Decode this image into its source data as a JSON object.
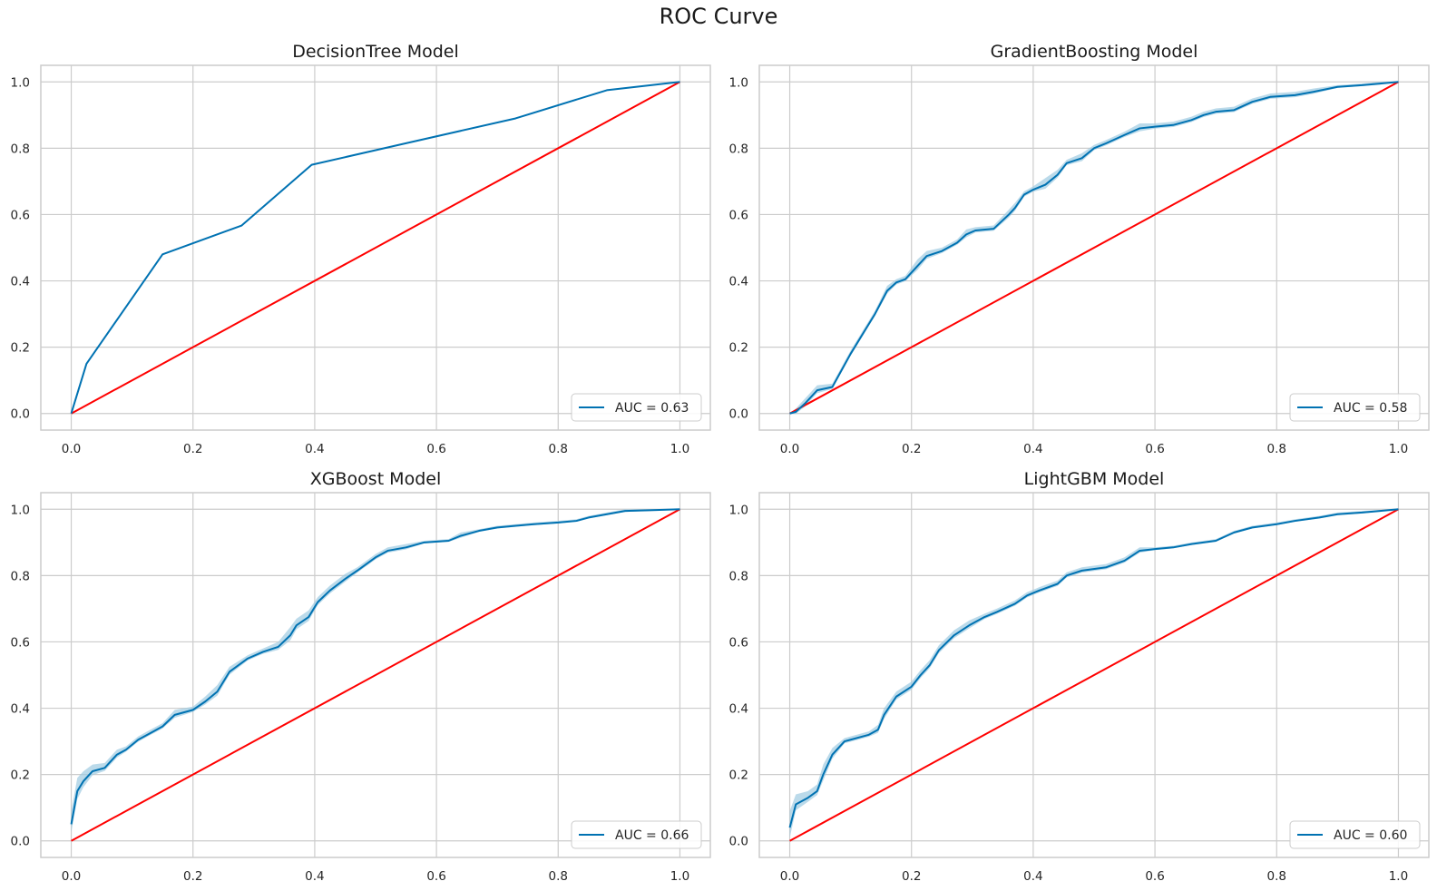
{
  "figure": {
    "suptitle": "ROC Curve"
  },
  "colors": {
    "curve": "#0072b2",
    "band": "#9ecae1",
    "diagonal": "#ff0000",
    "grid": "#cccccc",
    "spine": "#cccccc"
  },
  "chart_data": [
    {
      "type": "line",
      "title": "DecisionTree Model",
      "xlabel": "",
      "ylabel": "",
      "xlim": [
        -0.05,
        1.05
      ],
      "ylim": [
        -0.05,
        1.05
      ],
      "xticks": [
        "0.0",
        "0.2",
        "0.4",
        "0.6",
        "0.8",
        "1.0"
      ],
      "yticks": [
        "0.0",
        "0.2",
        "0.4",
        "0.6",
        "0.8",
        "1.0"
      ],
      "grid": true,
      "legend": {
        "placement": "lower-right",
        "label": "AUC = 0.63"
      },
      "series": [
        {
          "x": [
            0,
            0.025,
            0.15,
            0.28,
            0.395,
            0.55,
            0.73,
            0.88,
            1.0
          ],
          "y": [
            0,
            0.15,
            0.48,
            0.567,
            0.75,
            0.815,
            0.89,
            0.975,
            1.0
          ]
        }
      ],
      "band": [],
      "diagonal": {
        "x": [
          0,
          1
        ],
        "y": [
          0,
          1
        ]
      }
    },
    {
      "type": "line",
      "title": "GradientBoosting Model",
      "xlabel": "",
      "ylabel": "",
      "xlim": [
        -0.05,
        1.05
      ],
      "ylim": [
        -0.05,
        1.05
      ],
      "xticks": [
        "0.0",
        "0.2",
        "0.4",
        "0.6",
        "0.8",
        "1.0"
      ],
      "yticks": [
        "0.0",
        "0.2",
        "0.4",
        "0.6",
        "0.8",
        "1.0"
      ],
      "grid": true,
      "legend": {
        "placement": "lower-right",
        "label": "AUC = 0.58"
      },
      "series": [
        {
          "x": [
            0,
            0.01,
            0.025,
            0.045,
            0.07,
            0.1,
            0.125,
            0.14,
            0.16,
            0.175,
            0.19,
            0.21,
            0.225,
            0.25,
            0.275,
            0.29,
            0.305,
            0.335,
            0.36,
            0.37,
            0.385,
            0.4,
            0.42,
            0.44,
            0.455,
            0.48,
            0.5,
            0.52,
            0.55,
            0.575,
            0.6,
            0.63,
            0.66,
            0.68,
            0.7,
            0.73,
            0.76,
            0.79,
            0.83,
            0.86,
            0.9,
            0.94,
            0.97,
            1.0
          ],
          "y": [
            0,
            0.005,
            0.03,
            0.07,
            0.08,
            0.18,
            0.255,
            0.3,
            0.37,
            0.395,
            0.405,
            0.445,
            0.475,
            0.49,
            0.515,
            0.54,
            0.552,
            0.557,
            0.6,
            0.62,
            0.66,
            0.675,
            0.69,
            0.72,
            0.755,
            0.77,
            0.8,
            0.815,
            0.84,
            0.86,
            0.865,
            0.87,
            0.885,
            0.9,
            0.91,
            0.915,
            0.94,
            0.955,
            0.96,
            0.97,
            0.985,
            0.99,
            0.995,
            1.0
          ]
        }
      ],
      "band": [
        0,
        0.01,
        0.015,
        0.015,
        0.01,
        0.01,
        0.01,
        0.01,
        0.015,
        0.01,
        0.01,
        0.02,
        0.015,
        0.01,
        0.01,
        0.015,
        0.01,
        0.01,
        0.015,
        0.015,
        0.01,
        0.01,
        0.02,
        0.015,
        0.01,
        0.015,
        0.01,
        0.01,
        0.01,
        0.015,
        0.01,
        0.01,
        0.01,
        0.01,
        0.01,
        0.01,
        0.01,
        0.01,
        0.01,
        0.01,
        0.005,
        0.005,
        0.005,
        0
      ],
      "diagonal": {
        "x": [
          0,
          1
        ],
        "y": [
          0,
          1
        ]
      }
    },
    {
      "type": "line",
      "title": "XGBoost Model",
      "xlabel": "",
      "ylabel": "",
      "xlim": [
        -0.05,
        1.05
      ],
      "ylim": [
        -0.05,
        1.05
      ],
      "xticks": [
        "0.0",
        "0.2",
        "0.4",
        "0.6",
        "0.8",
        "1.0"
      ],
      "yticks": [
        "0.0",
        "0.2",
        "0.4",
        "0.6",
        "0.8",
        "1.0"
      ],
      "grid": true,
      "legend": {
        "placement": "lower-right",
        "label": "AUC = 0.66"
      },
      "series": [
        {
          "x": [
            0,
            0.01,
            0.02,
            0.035,
            0.055,
            0.075,
            0.09,
            0.11,
            0.13,
            0.15,
            0.17,
            0.2,
            0.22,
            0.24,
            0.26,
            0.29,
            0.315,
            0.34,
            0.36,
            0.37,
            0.39,
            0.405,
            0.425,
            0.45,
            0.47,
            0.5,
            0.52,
            0.55,
            0.58,
            0.62,
            0.64,
            0.67,
            0.7,
            0.73,
            0.76,
            0.8,
            0.83,
            0.85,
            0.88,
            0.91,
            0.95,
            1.0
          ],
          "y": [
            0.05,
            0.15,
            0.18,
            0.21,
            0.22,
            0.26,
            0.275,
            0.305,
            0.325,
            0.345,
            0.38,
            0.395,
            0.42,
            0.45,
            0.51,
            0.55,
            0.57,
            0.585,
            0.62,
            0.65,
            0.675,
            0.72,
            0.755,
            0.79,
            0.815,
            0.855,
            0.875,
            0.885,
            0.9,
            0.905,
            0.92,
            0.935,
            0.945,
            0.95,
            0.955,
            0.96,
            0.965,
            0.975,
            0.985,
            0.995,
            0.997,
            1.0
          ]
        }
      ],
      "band": [
        0.04,
        0.04,
        0.03,
        0.02,
        0.015,
        0.015,
        0.01,
        0.01,
        0.01,
        0.01,
        0.015,
        0.01,
        0.015,
        0.02,
        0.015,
        0.01,
        0.01,
        0.015,
        0.025,
        0.02,
        0.02,
        0.015,
        0.015,
        0.015,
        0.01,
        0.01,
        0.01,
        0.01,
        0.005,
        0.005,
        0.01,
        0.005,
        0.005,
        0.005,
        0.005,
        0.005,
        0.005,
        0.005,
        0.005,
        0.005,
        0.003,
        0
      ],
      "diagonal": {
        "x": [
          0,
          1
        ],
        "y": [
          0,
          1
        ]
      }
    },
    {
      "type": "line",
      "title": "LightGBM Model",
      "xlabel": "",
      "ylabel": "",
      "xlim": [
        -0.05,
        1.05
      ],
      "ylim": [
        -0.05,
        1.05
      ],
      "xticks": [
        "0.0",
        "0.2",
        "0.4",
        "0.6",
        "0.8",
        "1.0"
      ],
      "yticks": [
        "0.0",
        "0.2",
        "0.4",
        "0.6",
        "0.8",
        "1.0"
      ],
      "grid": true,
      "legend": {
        "placement": "lower-right",
        "label": "AUC = 0.60"
      },
      "series": [
        {
          "x": [
            0,
            0.01,
            0.03,
            0.045,
            0.055,
            0.07,
            0.09,
            0.1,
            0.13,
            0.145,
            0.155,
            0.175,
            0.2,
            0.215,
            0.23,
            0.245,
            0.27,
            0.295,
            0.32,
            0.34,
            0.37,
            0.39,
            0.41,
            0.44,
            0.455,
            0.48,
            0.52,
            0.55,
            0.575,
            0.6,
            0.63,
            0.66,
            0.7,
            0.73,
            0.76,
            0.8,
            0.83,
            0.87,
            0.9,
            0.94,
            0.97,
            1.0
          ],
          "y": [
            0.04,
            0.11,
            0.13,
            0.15,
            0.2,
            0.26,
            0.3,
            0.305,
            0.32,
            0.335,
            0.38,
            0.435,
            0.465,
            0.5,
            0.53,
            0.575,
            0.62,
            0.65,
            0.675,
            0.69,
            0.715,
            0.74,
            0.755,
            0.775,
            0.8,
            0.815,
            0.825,
            0.845,
            0.875,
            0.88,
            0.885,
            0.895,
            0.905,
            0.93,
            0.945,
            0.955,
            0.965,
            0.975,
            0.985,
            0.99,
            0.995,
            1.0
          ]
        }
      ],
      "band": [
        0.05,
        0.03,
        0.02,
        0.02,
        0.03,
        0.02,
        0.01,
        0.01,
        0.01,
        0.015,
        0.02,
        0.015,
        0.015,
        0.015,
        0.015,
        0.015,
        0.015,
        0.015,
        0.01,
        0.01,
        0.01,
        0.01,
        0.01,
        0.01,
        0.01,
        0.01,
        0.01,
        0.01,
        0.01,
        0.005,
        0.005,
        0.005,
        0.005,
        0.005,
        0.005,
        0.005,
        0.005,
        0.005,
        0.005,
        0.005,
        0.003,
        0
      ],
      "diagonal": {
        "x": [
          0,
          1
        ],
        "y": [
          0,
          1
        ]
      }
    }
  ]
}
